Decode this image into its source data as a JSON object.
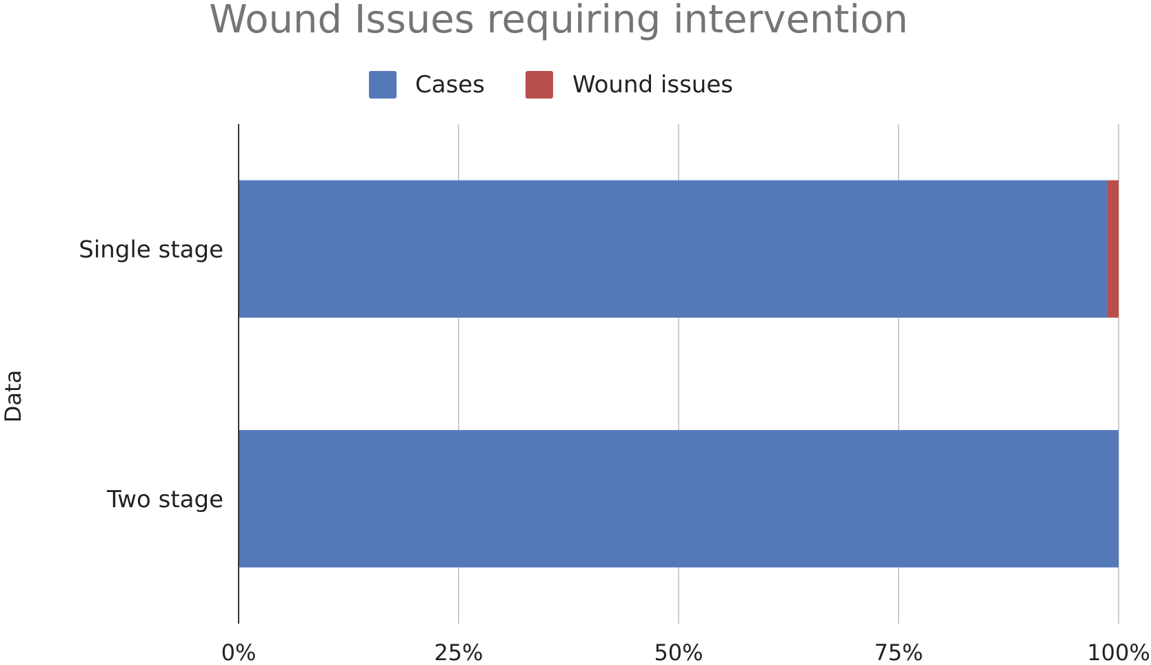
{
  "chart_data": {
    "type": "bar",
    "orientation": "horizontal",
    "stacking": "percent",
    "title": "Wound Issues requiring intervention",
    "xlabel": "",
    "ylabel": "Data",
    "xlim": [
      0,
      100
    ],
    "x_ticks": [
      "0%",
      "25%",
      "50%",
      "75%",
      "100%"
    ],
    "categories": [
      "Single stage",
      "Two stage"
    ],
    "series": [
      {
        "name": "Cases",
        "color": "#5578b9",
        "values": [
          98.7,
          100
        ]
      },
      {
        "name": "Wound issues",
        "color": "#b84f4a",
        "values": [
          1.3,
          0
        ]
      }
    ],
    "grid": true,
    "legend_position": "top-center"
  }
}
